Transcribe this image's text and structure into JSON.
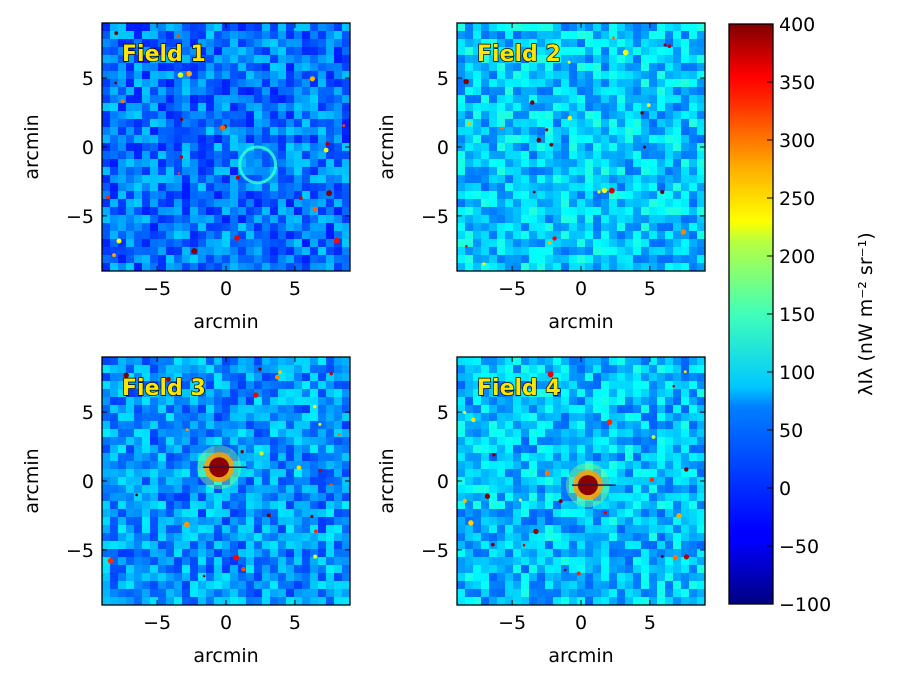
{
  "chart_data": {
    "type": "heatmap",
    "colormap": "jet",
    "panels": [
      {
        "title": "Field 1",
        "xlabel": "arcmin",
        "ylabel": "arcmin",
        "xlim": [
          -9,
          9
        ],
        "ylim": [
          -9,
          9
        ],
        "xticks": [
          "−5",
          "0",
          "5"
        ],
        "yticks": [
          "5",
          "0",
          "−5"
        ],
        "xtick_values": [
          -5,
          0,
          5
        ],
        "ytick_values": [
          5,
          0,
          -5
        ],
        "background_level": 20,
        "bright_source": null,
        "ring": {
          "x": 2.3,
          "y": -1.3,
          "r": 1.3
        }
      },
      {
        "title": "Field 2",
        "xlabel": "arcmin",
        "ylabel": "arcmin",
        "xlim": [
          -9,
          9
        ],
        "ylim": [
          -9,
          9
        ],
        "xticks": [
          "−5",
          "0",
          "5"
        ],
        "yticks": [
          "5",
          "0",
          "−5"
        ],
        "xtick_values": [
          -5,
          0,
          5
        ],
        "ytick_values": [
          5,
          0,
          -5
        ],
        "background_level": 60,
        "bright_source": null,
        "ring": null
      },
      {
        "title": "Field 3",
        "xlabel": "arcmin",
        "ylabel": "arcmin",
        "xlim": [
          -9,
          9
        ],
        "ylim": [
          -9,
          9
        ],
        "xticks": [
          "−5",
          "0",
          "5"
        ],
        "yticks": [
          "5",
          "0",
          "−5"
        ],
        "xtick_values": [
          -5,
          0,
          5
        ],
        "ytick_values": [
          5,
          0,
          -5
        ],
        "background_level": 35,
        "bright_source": {
          "x": -0.5,
          "y": 1.0
        },
        "ring": null
      },
      {
        "title": "Field 4",
        "xlabel": "arcmin",
        "ylabel": "arcmin",
        "xlim": [
          -9,
          9
        ],
        "ylim": [
          -9,
          9
        ],
        "xticks": [
          "−5",
          "0",
          "5"
        ],
        "yticks": [
          "5",
          "0",
          "−5"
        ],
        "xtick_values": [
          -5,
          0,
          5
        ],
        "ytick_values": [
          5,
          0,
          -5
        ],
        "background_level": 55,
        "bright_source": {
          "x": 0.5,
          "y": -0.3
        },
        "ring": null
      }
    ],
    "colorbar": {
      "label": "λIλ (nW m⁻² sr⁻¹)",
      "min": -100,
      "max": 400,
      "ticks": [
        "400",
        "350",
        "300",
        "250",
        "200",
        "150",
        "100",
        "50",
        "0",
        "−50",
        "−100"
      ],
      "tick_values": [
        400,
        350,
        300,
        250,
        200,
        150,
        100,
        50,
        0,
        -50,
        -100
      ]
    }
  }
}
